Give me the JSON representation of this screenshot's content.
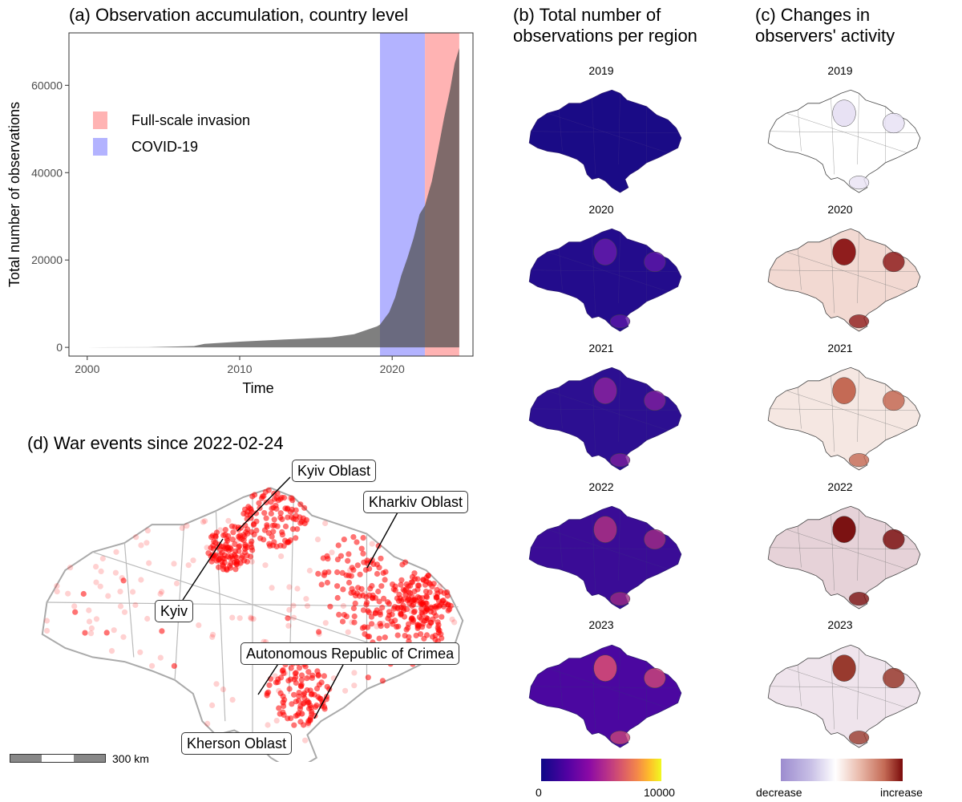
{
  "panel_a": {
    "title": "(a) Observation accumulation, country level",
    "xlabel": "Time",
    "ylabel": "Total number of observations",
    "x_ticks": [
      "2000",
      "2010",
      "2020"
    ],
    "y_ticks": [
      "0",
      "20000",
      "40000",
      "60000"
    ],
    "legend": [
      "Full-scale invasion",
      "COVID-19"
    ],
    "colors": {
      "area": "#4d4d4d",
      "invasion": "#ffb3b3",
      "covid": "#b3b3ff"
    }
  },
  "panel_b": {
    "title_line1": "(b) Total number of",
    "title_line2": "observations per region",
    "years": [
      "2019",
      "2020",
      "2021",
      "2022",
      "2023"
    ],
    "colorbar": {
      "min_label": "0",
      "max_label": "10000"
    }
  },
  "panel_c": {
    "title_line1": "(c) Changes in",
    "title_line2": "observers' activity",
    "years": [
      "2019",
      "2020",
      "2021",
      "2022",
      "2023"
    ],
    "colorbar": {
      "min_label": "decrease",
      "max_label": "increase"
    }
  },
  "panel_d": {
    "title": "(d) War events since 2022-02-24",
    "labels": {
      "kyiv_oblast": "Kyiv Oblast",
      "kharkiv_oblast": "Kharkiv Oblast",
      "kyiv": "Kyiv",
      "crimea": "Autonomous Republic of Crimea",
      "kherson_oblast": "Kherson Oblast"
    },
    "scale_bar": "300 km"
  },
  "chart_data": {
    "type": "area",
    "title": "(a) Observation accumulation, country level",
    "xlabel": "Time",
    "ylabel": "Total number of observations",
    "xlim": [
      1998.8,
      2025.3
    ],
    "ylim": [
      -2000,
      72000
    ],
    "grid": false,
    "x": [
      2000,
      2004,
      2007,
      2007.7,
      2010,
      2013,
      2016,
      2017.5,
      2019,
      2019.2,
      2019.8,
      2020.2,
      2020.6,
      2021.0,
      2021.4,
      2021.8,
      2022.15,
      2022.6,
      2023.0,
      2023.4,
      2023.8,
      2024.1,
      2024.4
    ],
    "values": [
      0,
      50,
      300,
      800,
      1300,
      1800,
      2300,
      3000,
      4800,
      5200,
      8000,
      11500,
      16500,
      20500,
      25000,
      30500,
      32500,
      38000,
      45000,
      52500,
      59000,
      65000,
      68500
    ],
    "shaded_periods": [
      {
        "name": "COVID-19",
        "start": 2019.2,
        "end": 2022.15
      },
      {
        "name": "Full-scale invasion",
        "start": 2022.15,
        "end": 2024.4
      }
    ]
  }
}
